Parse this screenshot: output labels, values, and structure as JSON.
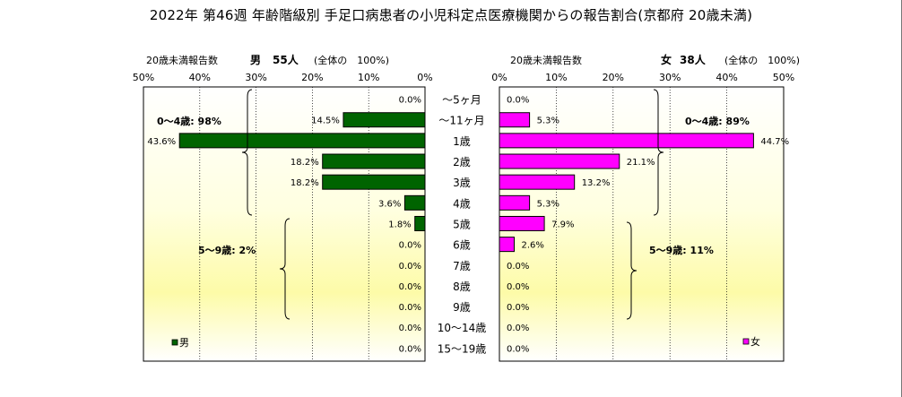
{
  "chart_data": {
    "type": "bar",
    "title": "2022年 第46週  年齢階級別 手足口病患者の小児科定点医療機関からの報告割合(京都府 20歳未満)",
    "categories": [
      "～5ヶ月",
      "～11ヶ月",
      "1歳",
      "2歳",
      "3歳",
      "4歳",
      "5歳",
      "6歳",
      "7歳",
      "8歳",
      "9歳",
      "10～14歳",
      "15～19歳"
    ],
    "xlim": [
      0,
      50
    ],
    "x_ticks": [
      "50%",
      "40%",
      "30%",
      "20%",
      "10%",
      "0%"
    ],
    "x_ticks_right": [
      "0%",
      "10%",
      "20%",
      "30%",
      "40%",
      "50%"
    ],
    "male": {
      "header_label": "20歳未満報告数",
      "header_sex": "男",
      "header_count": "55人",
      "header_total": "(全体の　100%)",
      "legend": "男",
      "color": "#006400",
      "values": [
        0.0,
        14.5,
        43.6,
        18.2,
        18.2,
        3.6,
        1.8,
        0.0,
        0.0,
        0.0,
        0.0,
        0.0,
        0.0
      ],
      "value_labels": [
        "0.0%",
        "14.5%",
        "43.6%",
        "18.2%",
        "18.2%",
        "3.6%",
        "1.8%",
        "0.0%",
        "0.0%",
        "0.0%",
        "0.0%",
        "0.0%",
        "0.0%"
      ],
      "group_0_4": "0～4歳: 98%",
      "group_5_9": "5～9歳: 2%"
    },
    "female": {
      "header_label": "20歳未満報告数",
      "header_sex": "女",
      "header_count": "38人",
      "header_total": "(全体の　100%)",
      "legend": "女",
      "color": "#ff00ff",
      "values": [
        0.0,
        5.3,
        44.7,
        21.1,
        13.2,
        5.3,
        7.9,
        2.6,
        0.0,
        0.0,
        0.0,
        0.0,
        0.0
      ],
      "value_labels": [
        "0.0%",
        "5.3%",
        "44.7%",
        "21.1%",
        "13.2%",
        "5.3%",
        "7.9%",
        "2.6%",
        "0.0%",
        "0.0%",
        "0.0%",
        "0.0%",
        "0.0%"
      ],
      "group_0_4": "0～4歳: 89%",
      "group_5_9": "5～9歳: 11%"
    }
  }
}
